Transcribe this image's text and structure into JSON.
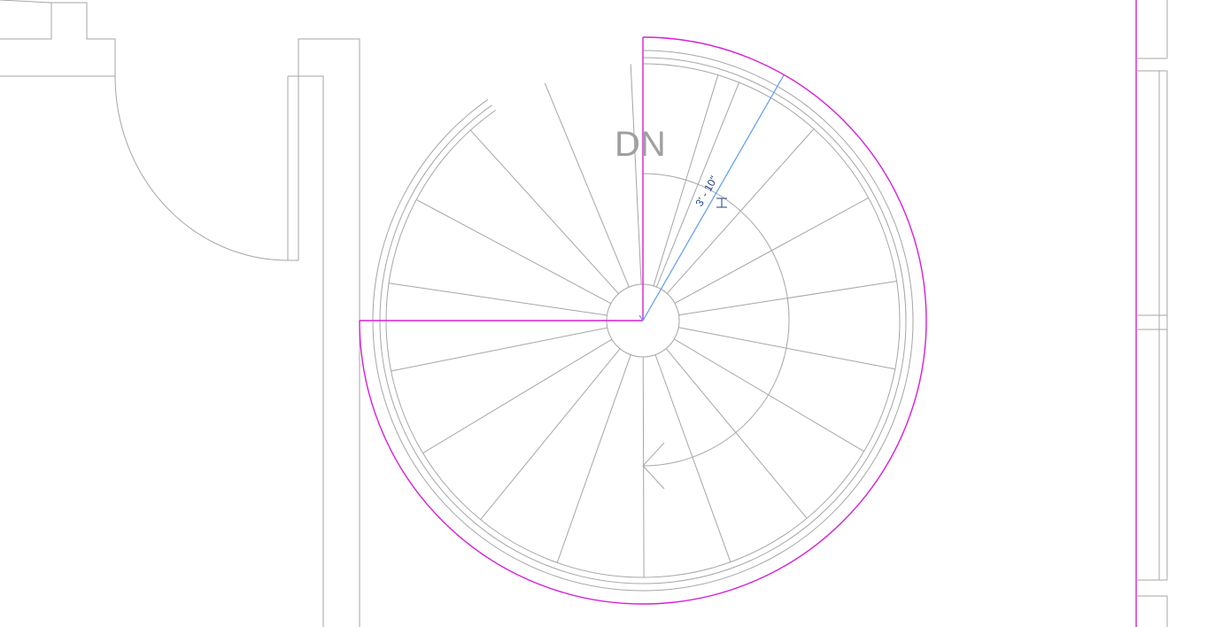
{
  "plan": {
    "direction_label": "DN",
    "radius_dimension": "3' - 10\"",
    "tread_count": 15
  },
  "colors": {
    "line": "#a6a6a6",
    "selection": "#d61fd6",
    "dimension_line": "#5b9bf0",
    "dimension_text": "#1f3f8a",
    "label": "#a0a0a0"
  }
}
